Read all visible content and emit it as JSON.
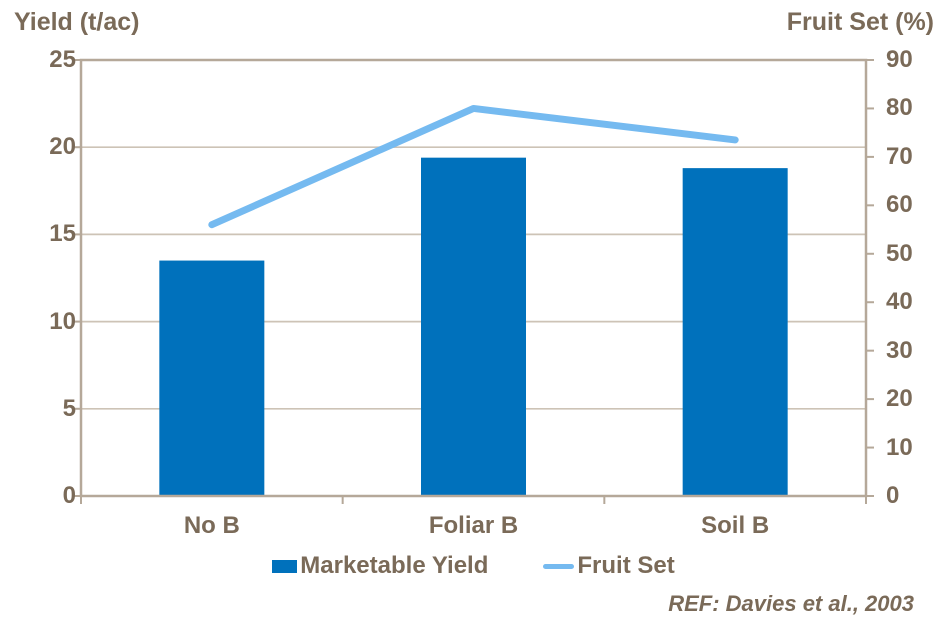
{
  "chart_data": {
    "type": "combo",
    "categories": [
      "No B",
      "Foliar B",
      "Soil B"
    ],
    "series": [
      {
        "name": "Marketable Yield",
        "type": "bar",
        "axis": "left",
        "values": [
          13.5,
          19.4,
          18.8
        ],
        "color": "#0071bc"
      },
      {
        "name": "Fruit Set",
        "type": "line",
        "axis": "right",
        "values": [
          56,
          80,
          73.5
        ],
        "color": "#75baf0"
      }
    ],
    "left_axis": {
      "title": "Yield (t/ac)",
      "min": 0,
      "max": 25,
      "ticks": [
        0,
        5,
        10,
        15,
        20,
        25
      ]
    },
    "right_axis": {
      "title": "Fruit Set (%)",
      "min": 0,
      "max": 90,
      "ticks": [
        0,
        10,
        20,
        30,
        40,
        50,
        60,
        70,
        80,
        90
      ]
    },
    "grid": true,
    "legend_position": "bottom",
    "reference": "REF: Davies et al., 2003"
  },
  "colors": {
    "text": "#7a6a58",
    "axis": "#b5a899",
    "grid": "#cdc3b6",
    "bar": "#0071bc",
    "line": "#75baf0",
    "background": "#ffffff"
  }
}
